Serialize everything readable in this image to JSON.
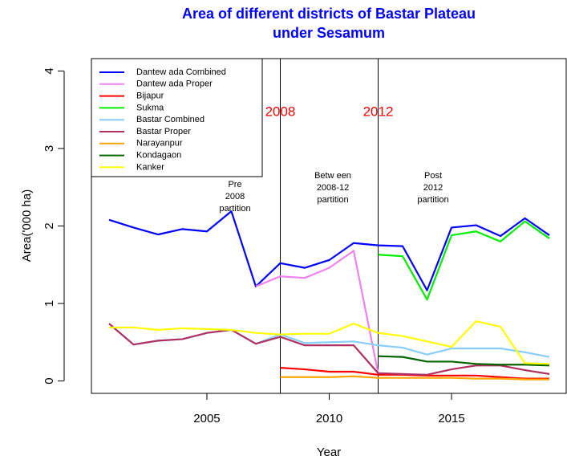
{
  "chart_data": {
    "type": "line",
    "title": [
      "Area of different districts of Bastar Plateau",
      "under Sesamum"
    ],
    "x_label": "Year",
    "y_label": "Area('000 ha)",
    "x": [
      2001,
      2002,
      2003,
      2004,
      2005,
      2006,
      2007,
      2008,
      2009,
      2010,
      2011,
      2012,
      2013,
      2014,
      2015,
      2016,
      2017,
      2018,
      2019
    ],
    "xlim": [
      2000.28,
      2019.72
    ],
    "xticks": [
      2005,
      2010,
      2015
    ],
    "ylim": [
      -0.16,
      4.16
    ],
    "yticks": [
      0,
      1,
      2,
      3,
      4
    ],
    "grid": false,
    "legend": "top-left",
    "series": [
      {
        "name": "Dantew ada Combined",
        "color": "#0000ff",
        "values": [
          2.08,
          1.98,
          1.89,
          1.96,
          1.93,
          2.19,
          1.22,
          1.52,
          1.46,
          1.56,
          1.78,
          1.75,
          1.74,
          1.17,
          1.98,
          2.01,
          1.87,
          2.1,
          1.88
        ]
      },
      {
        "name": "Dantew ada Proper",
        "color": "#ee82ee",
        "values": [
          null,
          null,
          null,
          null,
          null,
          null,
          1.22,
          1.35,
          1.33,
          1.46,
          1.68,
          0.1,
          null,
          null,
          null,
          null,
          null,
          null,
          null
        ]
      },
      {
        "name": "Bijapur",
        "color": "#ff0000",
        "values": [
          null,
          null,
          null,
          null,
          null,
          null,
          null,
          0.17,
          0.15,
          0.12,
          0.12,
          0.08,
          0.08,
          0.07,
          0.07,
          0.07,
          0.05,
          0.03,
          0.03
        ]
      },
      {
        "name": "Sukma",
        "color": "#00ee00",
        "values": [
          null,
          null,
          null,
          null,
          null,
          null,
          null,
          null,
          null,
          null,
          null,
          1.63,
          1.61,
          1.05,
          1.88,
          1.93,
          1.8,
          2.06,
          1.84
        ]
      },
      {
        "name": "Bastar Combined",
        "color": "#87cefa",
        "values": [
          0.74,
          0.47,
          0.52,
          0.54,
          0.62,
          0.66,
          0.48,
          0.6,
          0.49,
          0.5,
          0.51,
          0.46,
          0.43,
          0.34,
          0.42,
          0.42,
          0.42,
          0.37,
          0.31
        ]
      },
      {
        "name": "Bastar Proper",
        "color": "#b03060",
        "values": [
          0.74,
          0.47,
          0.52,
          0.54,
          0.62,
          0.66,
          0.48,
          0.57,
          0.46,
          0.46,
          0.46,
          0.1,
          0.09,
          0.08,
          0.15,
          0.2,
          0.2,
          0.14,
          0.09
        ]
      },
      {
        "name": "Narayanpur",
        "color": "#ffa500",
        "values": [
          null,
          null,
          null,
          null,
          null,
          null,
          null,
          0.05,
          0.05,
          0.05,
          0.06,
          0.04,
          0.04,
          0.04,
          0.04,
          0.03,
          0.03,
          0.02,
          0.02
        ]
      },
      {
        "name": "Kondagaon",
        "color": "#006400",
        "values": [
          null,
          null,
          null,
          null,
          null,
          null,
          null,
          null,
          null,
          null,
          null,
          0.32,
          0.31,
          0.25,
          0.25,
          0.22,
          0.21,
          0.21,
          0.2
        ]
      },
      {
        "name": "Kanker",
        "color": "#ffff00",
        "values": [
          0.69,
          0.69,
          0.66,
          0.68,
          0.67,
          0.66,
          0.62,
          0.6,
          0.61,
          0.61,
          0.74,
          0.62,
          0.58,
          0.51,
          0.44,
          0.77,
          0.7,
          0.23,
          0.22
        ]
      }
    ],
    "vlines": [
      {
        "value": 2008,
        "label": "2008"
      },
      {
        "value": 2012,
        "label": "2012"
      }
    ],
    "annotations": [
      [
        "Pre",
        "2008",
        "partition"
      ],
      [
        "Betw een",
        "2008-12",
        "partition"
      ],
      [
        "Post",
        "2012",
        "partition"
      ]
    ]
  }
}
